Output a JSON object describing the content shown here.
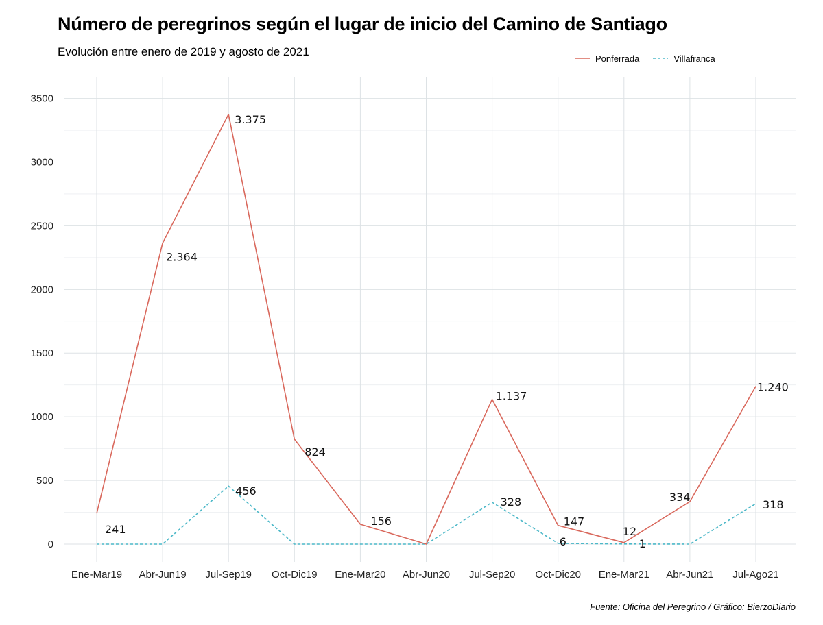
{
  "title": "Número de peregrinos según el lugar de inicio del Camino de Santiago",
  "subtitle": "Evolución entre enero de 2019 y agosto de 2021",
  "caption": "Fuente: Oficina del Peregrino / Gráfico: BierzoDiario",
  "chart_data": {
    "type": "line",
    "title": "Número de peregrinos según el lugar de inicio del Camino de Santiago",
    "subtitle": "Evolución entre enero de 2019 y agosto de 2021",
    "xlabel": "",
    "ylabel": "",
    "ylim": [
      -140,
      3670
    ],
    "yticks": [
      0,
      500,
      1000,
      1500,
      2000,
      2500,
      3000,
      3500
    ],
    "ytick_labels": [
      "0",
      "500",
      "1000",
      "1500",
      "2000",
      "2500",
      "3000",
      "3500"
    ],
    "grid": true,
    "legend_position": "top-right",
    "categories": [
      "Ene-Mar19",
      "Abr-Jun19",
      "Jul-Sep19",
      "Oct-Dic19",
      "Ene-Mar20",
      "Abr-Jun20",
      "Jul-Sep20",
      "Oct-Dic20",
      "Ene-Mar21",
      "Abr-Jun21",
      "Jul-Ago21"
    ],
    "series": [
      {
        "name": "Ponferrada",
        "color": "#d9685c",
        "dash": "solid",
        "values": [
          241,
          2364,
          3375,
          824,
          156,
          0,
          1137,
          147,
          12,
          334,
          1240
        ],
        "labels": [
          "241",
          "2.364",
          "3.375",
          "824",
          "156",
          "",
          "1.137",
          "147",
          "12",
          "334",
          "1.240"
        ]
      },
      {
        "name": "Villafranca",
        "color": "#4cb8c8",
        "dash": "dashed",
        "values": [
          0,
          0,
          456,
          0,
          0,
          0,
          328,
          6,
          1,
          0,
          318
        ],
        "labels": [
          "",
          "",
          "456",
          "",
          "",
          "",
          "328",
          "6",
          "1",
          "",
          "318"
        ]
      }
    ]
  }
}
